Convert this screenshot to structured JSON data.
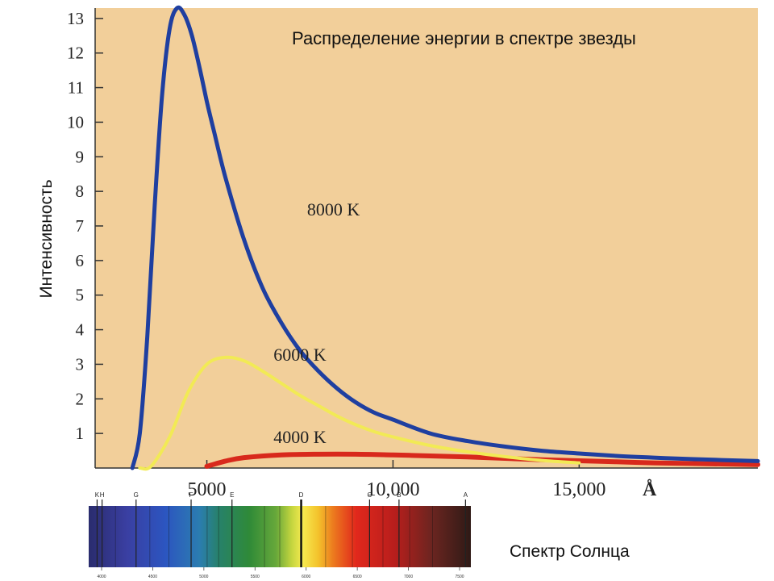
{
  "chart_data": {
    "type": "line",
    "title": "Распределение энергии в спектре звезды",
    "ylabel": "Интенсивность",
    "xlabel": "",
    "x_unit": "Å",
    "xlim": [
      2000,
      19800
    ],
    "ylim": [
      0,
      13.3
    ],
    "y_ticks": [
      "1",
      "2",
      "3",
      "4",
      "5",
      "6",
      "7",
      "8",
      "9",
      "10",
      "11",
      "12",
      "13"
    ],
    "x_ticks": [
      {
        "value": 5000,
        "label": "5000"
      },
      {
        "value": 10000,
        "label": "10,000"
      },
      {
        "value": 15000,
        "label": "15,000"
      }
    ],
    "grid": false,
    "series": [
      {
        "name": "8000 K",
        "color": "#1f3fa0",
        "x": [
          3000,
          3200,
          3400,
          3600,
          3800,
          4000,
          4200,
          4400,
          4600,
          4800,
          5000,
          5200,
          5500,
          6000,
          6500,
          7000,
          7500,
          8000,
          8500,
          9000,
          9500,
          10000,
          11000,
          12000,
          13000,
          14000,
          15000,
          16000,
          17000,
          18000,
          19800
        ],
        "values": [
          0.0,
          1.0,
          3.8,
          7.6,
          10.8,
          12.7,
          13.3,
          13.1,
          12.5,
          11.6,
          10.6,
          9.7,
          8.4,
          6.6,
          5.2,
          4.2,
          3.4,
          2.8,
          2.3,
          1.9,
          1.6,
          1.4,
          1.0,
          0.78,
          0.62,
          0.5,
          0.42,
          0.35,
          0.3,
          0.26,
          0.2
        ]
      },
      {
        "name": "6000 K",
        "color": "#f2ea55",
        "x": [
          3200,
          3500,
          4000,
          4500,
          5000,
          5500,
          6000,
          6500,
          7000,
          7500,
          8000,
          8500,
          9000,
          9500,
          10000,
          11000,
          12000,
          13000,
          14000,
          15000
        ],
        "values": [
          0.0,
          0.05,
          0.9,
          2.2,
          3.0,
          3.2,
          3.1,
          2.8,
          2.45,
          2.1,
          1.8,
          1.5,
          1.25,
          1.05,
          0.9,
          0.65,
          0.47,
          0.33,
          0.22,
          0.15
        ]
      },
      {
        "name": "4000 K",
        "color": "#d8291c",
        "x": [
          5000,
          5500,
          6000,
          7000,
          8000,
          9000,
          10000,
          11000,
          12000,
          13000,
          14000,
          15000,
          16000,
          17000,
          18000,
          19800
        ],
        "values": [
          0.05,
          0.2,
          0.3,
          0.38,
          0.4,
          0.4,
          0.38,
          0.35,
          0.32,
          0.28,
          0.24,
          0.21,
          0.18,
          0.15,
          0.13,
          0.1
        ]
      }
    ],
    "annotations": [
      {
        "text": "8000 K",
        "series": "8000 K"
      },
      {
        "text": "6000 K",
        "series": "6000 K"
      },
      {
        "text": "4000 K",
        "series": "4000 K"
      }
    ]
  },
  "spectrum": {
    "caption": "Спектр Солнца",
    "line_labels": [
      "K",
      "H",
      "G",
      "F",
      "E",
      "D",
      "C",
      "B",
      "A"
    ],
    "scale_labels": [
      "4000",
      "4500",
      "5000",
      "5500",
      "6000",
      "6500",
      "7000",
      "7500"
    ],
    "lines": [
      {
        "label": "K",
        "pos": 0.022
      },
      {
        "label": "H",
        "pos": 0.035
      },
      {
        "label": "G",
        "pos": 0.124
      },
      {
        "label": "F",
        "pos": 0.268
      },
      {
        "label": "E",
        "pos": 0.375
      },
      {
        "label": "D",
        "pos": 0.556
      },
      {
        "label": "C",
        "pos": 0.735
      },
      {
        "label": "B",
        "pos": 0.812
      },
      {
        "label": "A",
        "pos": 0.986
      }
    ]
  }
}
